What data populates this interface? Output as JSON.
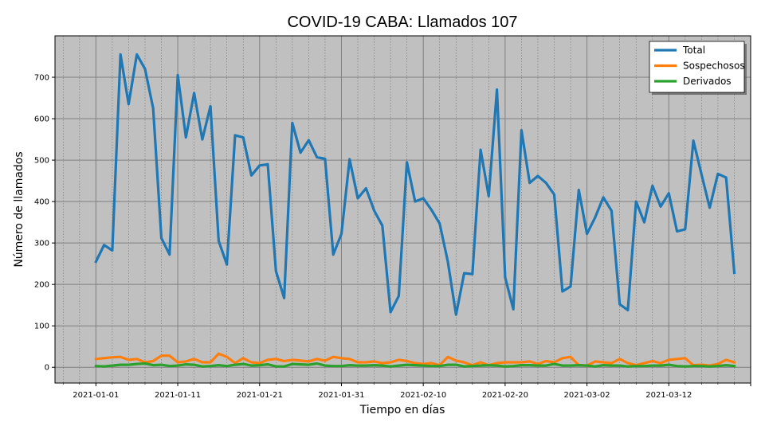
{
  "chart_data": {
    "type": "line",
    "title": "COVID-19 CABA: Llamados 107",
    "xlabel": "Tiempo en días",
    "ylabel": "Número de llamados",
    "x_start": "2021-01-01",
    "x_ticks": [
      "2021-01-01",
      "2021-01-11",
      "2021-01-21",
      "2021-01-31",
      "2021-02-10",
      "2021-02-20",
      "2021-03-02",
      "2021-03-12"
    ],
    "y_ticks": [
      0,
      100,
      200,
      300,
      400,
      500,
      600,
      700
    ],
    "xlim": [
      "2020-12-27",
      "2021-03-22"
    ],
    "ylim": [
      -38,
      800
    ],
    "grid": true,
    "legend_position": "top-right",
    "background": "#c0c0c0",
    "series": [
      {
        "name": "Total",
        "color": "#1f77b4",
        "values": [
          255,
          295,
          282,
          755,
          635,
          755,
          720,
          625,
          312,
          272,
          705,
          555,
          662,
          550,
          630,
          305,
          248,
          560,
          555,
          463,
          487,
          490,
          232,
          167,
          590,
          518,
          548,
          507,
          503,
          272,
          322,
          502,
          408,
          432,
          378,
          342,
          133,
          172,
          495,
          400,
          408,
          380,
          347,
          255,
          127,
          227,
          225,
          525,
          413,
          670,
          217,
          140,
          572,
          445,
          462,
          445,
          417,
          183,
          195,
          428,
          322,
          362,
          410,
          378,
          152,
          138,
          400,
          350,
          438,
          388,
          420,
          328,
          333,
          547,
          465,
          385,
          467,
          458,
          228
        ]
      },
      {
        "name": "Sospechosos",
        "color": "#ff7f0e",
        "values": [
          20,
          22,
          24,
          25,
          18,
          20,
          12,
          15,
          28,
          28,
          12,
          14,
          20,
          12,
          12,
          33,
          25,
          10,
          22,
          12,
          10,
          18,
          20,
          15,
          18,
          16,
          14,
          20,
          16,
          25,
          22,
          20,
          12,
          12,
          14,
          10,
          12,
          18,
          15,
          10,
          8,
          10,
          5,
          25,
          16,
          12,
          5,
          12,
          5,
          10,
          12,
          12,
          12,
          14,
          8,
          15,
          12,
          22,
          25,
          5,
          4,
          14,
          12,
          10,
          20,
          10,
          5,
          10,
          15,
          10,
          18,
          20,
          22,
          5,
          6,
          4,
          8,
          18,
          12
        ]
      },
      {
        "name": "Derivados",
        "color": "#2ca02c",
        "values": [
          3,
          2,
          4,
          6,
          6,
          8,
          9,
          5,
          6,
          3,
          4,
          7,
          6,
          2,
          3,
          5,
          3,
          6,
          8,
          4,
          5,
          7,
          2,
          2,
          8,
          7,
          6,
          9,
          4,
          3,
          3,
          5,
          4,
          4,
          5,
          4,
          2,
          4,
          6,
          5,
          4,
          3,
          3,
          6,
          6,
          2,
          3,
          4,
          5,
          4,
          2,
          3,
          5,
          5,
          4,
          4,
          8,
          4,
          4,
          5,
          4,
          2,
          5,
          4,
          4,
          2,
          3,
          3,
          4,
          4,
          6,
          3,
          2,
          3,
          3,
          2,
          3,
          5,
          3
        ]
      }
    ]
  }
}
